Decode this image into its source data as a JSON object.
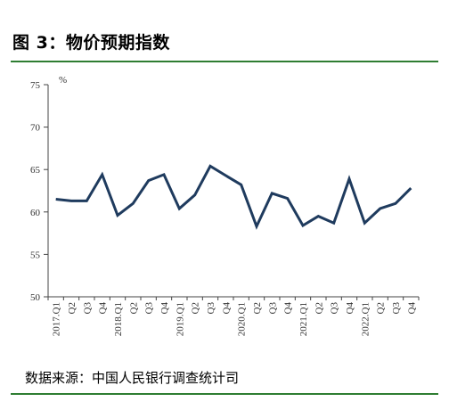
{
  "header": {
    "title": "图 3：物价预期指数"
  },
  "footer": {
    "source": "数据来源：中国人民银行调查统计司"
  },
  "chart_data": {
    "type": "line",
    "title": "图 3：物价预期指数",
    "xlabel": "",
    "ylabel": "%",
    "ylim": [
      50,
      75
    ],
    "yticks": [
      50,
      55,
      60,
      65,
      70,
      75
    ],
    "grid": false,
    "legend": "none",
    "line_color": "#1f3b5e",
    "categories": [
      "2017.Q1",
      "Q2",
      "Q3",
      "Q4",
      "2018.Q1",
      "Q2",
      "Q3",
      "Q4",
      "2019.Q1",
      "Q2",
      "Q3",
      "Q4",
      "2020.Q1",
      "Q2",
      "Q3",
      "Q4",
      "2021.Q1",
      "Q2",
      "Q3",
      "Q4",
      "2022.Q1",
      "Q2",
      "Q3",
      "Q4"
    ],
    "series": [
      {
        "values": [
          61.5,
          61.3,
          61.3,
          64.4,
          59.6,
          61.0,
          63.7,
          64.4,
          60.4,
          62.0,
          65.4,
          64.3,
          63.2,
          58.3,
          62.2,
          61.6,
          58.4,
          59.5,
          58.7,
          63.9,
          58.7,
          60.4,
          61.0,
          62.8
        ]
      }
    ]
  }
}
